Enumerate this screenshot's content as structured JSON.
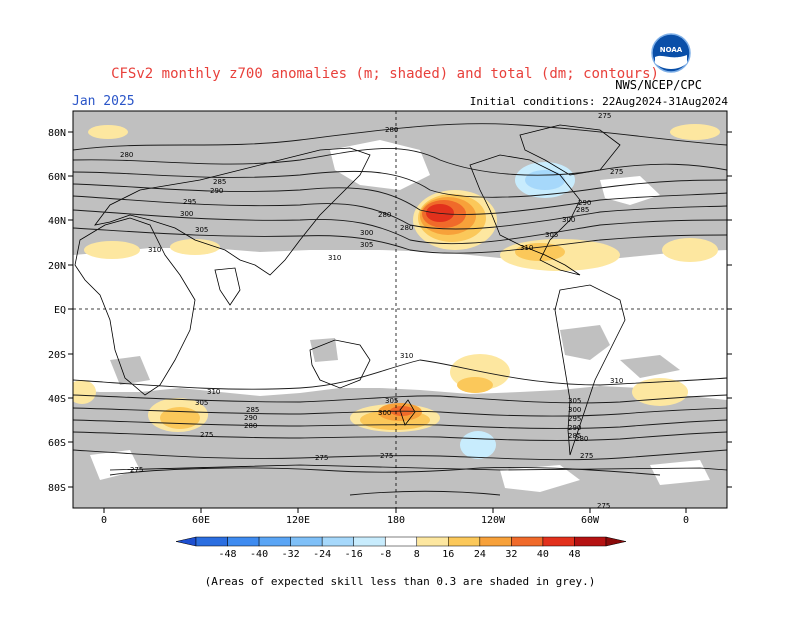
{
  "header": {
    "title": "CFSv2 monthly z700 anomalies (m; shaded) and total (dm; contours)",
    "month": "Jan 2025",
    "initial_conditions": "Initial conditions: 22Aug2024-31Aug2024",
    "org": "NWS/NCEP/CPC",
    "logo_text": "NOAA"
  },
  "axes": {
    "lat_ticks": [
      "80N",
      "60N",
      "40N",
      "20N",
      "EQ",
      "20S",
      "40S",
      "60S",
      "80S"
    ],
    "lon_ticks": [
      "0",
      "60E",
      "120E",
      "180",
      "120W",
      "60W",
      "0"
    ]
  },
  "colorbar": {
    "ticks": [
      "-48",
      "-40",
      "-32",
      "-24",
      "-16",
      "-8",
      "8",
      "16",
      "24",
      "32",
      "40",
      "48"
    ],
    "colors": [
      "#2b6ee0",
      "#3e8bf0",
      "#5aa5f5",
      "#7fc0f8",
      "#a6d8fb",
      "#c8ecfd",
      "#ffffff",
      "#fde7a0",
      "#fbc85a",
      "#f7a13a",
      "#f06a2a",
      "#e2311c",
      "#b51212"
    ]
  },
  "contour_labels": [
    "280",
    "290",
    "285",
    "275",
    "295",
    "300",
    "305",
    "310"
  ],
  "footnote": "(Areas of expected skill less than 0.3 are shaded in grey.)",
  "map": {
    "colors": {
      "grey_skill": "#c0c0c0",
      "no_skill_white": "#ffffff"
    }
  }
}
